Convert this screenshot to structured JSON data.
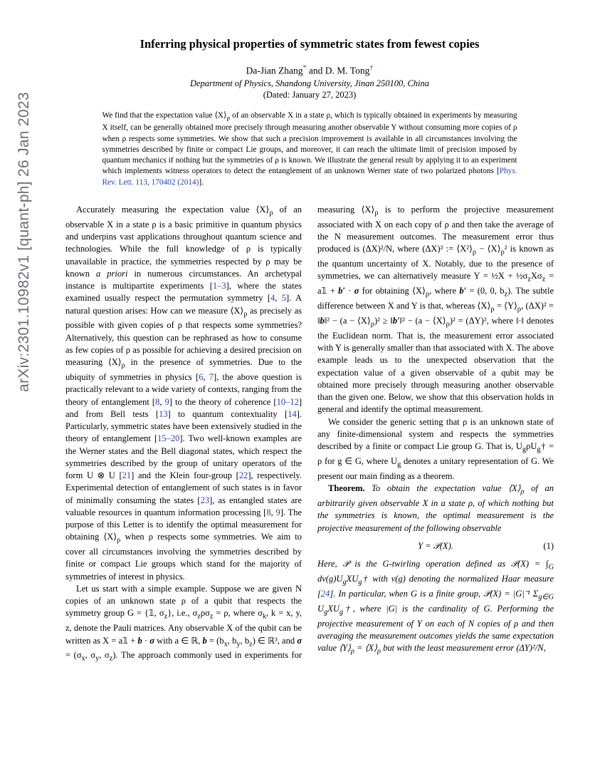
{
  "arxiv_stamp": "arXiv:2301.10982v1  [quant-ph]  26 Jan 2023",
  "title": "Inferring physical properties of symmetric states from fewest copies",
  "authors": "Da-Jian Zhang",
  "authors2": " and D. M. Tong",
  "affiliation": "Department of Physics, Shandong University, Jinan 250100, China",
  "date": "(Dated: January 27, 2023)",
  "abstract_1": "We find that the expectation value ⟨X⟩",
  "abstract_1b": " of an observable X in a state ρ, which is typically obtained in experiments by measuring X itself, can be generally obtained more precisely through measuring another observable Y without consuming more copies of ρ when ρ respects some symmetries. We show that such a precision improvement is available in all circumstances involving the symmetries described by finite or compact Lie groups, and moreover, it can reach the ultimate limit of precision imposed by quantum mechanics if nothing but the symmetries of ρ is known. We illustrate the general result by applying it to an experiment which implements witness operators to detect the entanglement of an unknown Werner state of two polarized photons [",
  "abstract_link": "Phys. Rev. Lett. 113, 170402 (2014)",
  "abstract_end": "].",
  "p1_a": "Accurately measuring the expectation value ⟨X⟩",
  "p1_b": " of an observable X in a state ρ is a basic primitive in quantum physics and underpins vast applications throughout quantum science and technologies. While the full knowledge of ρ is typically unavailable in practice, the symmetries respected by ρ may be known ",
  "p1_apriori": "a priori",
  "p1_c": " in numerous circumstances. An archetypal instance is multipartite experiments [",
  "r1": "1–3",
  "p1_d": "], where the states examined usually respect the permutation symmetry [",
  "r2": "4",
  "p1_e": ", ",
  "r3": "5",
  "p1_f": "]. A natural question arises: How can we measure ⟨X⟩",
  "p1_g": " as precisely as possible with given copies of ρ that respects some symmetries? Alternatively, this question can be rephrased as how to consume as few copies of ρ as possible for achieving a desired precision on measuring ⟨X⟩",
  "p1_h": " in the presence of symmetries. Due to the ubiquity of symmetries in physics [",
  "r4": "6",
  "p1_i": ", ",
  "r5": "7",
  "p1_j": "], the above question is practically relevant to a wide variety of contexts, ranging from the theory of entanglement [",
  "r6": "8",
  "p1_k": ", ",
  "r7": "9",
  "p1_l": "] to the theory of coherence [",
  "r8": "10–12",
  "p1_m": "] and from Bell tests [",
  "r9": "13",
  "p1_n": "] to quantum contextuality [",
  "r10": "14",
  "p1_o": "]. Particularly, symmetric states have been extensively studied in the theory of entanglement [",
  "r11": "15–20",
  "p1_p": "]. Two well-known examples are the Werner states and the Bell diagonal states, which respect the symmetries described by the group of unitary operators of the form U ⊗ U [",
  "r12": "21",
  "p1_q": "] and the Klein four-group [",
  "r13": "22",
  "p1_r": "], respectively. Experimental detection of entanglement of such states is in favor of minimally consuming the states [",
  "r14": "23",
  "p1_s": "], as entangled states are valuable resources in quantum information processing [",
  "r15": "8",
  "p1_t": ", ",
  "r16": "9",
  "p1_u": "]. The purpose of this Letter is to identify the optimal measurement for obtaining ⟨X⟩",
  "p1_v": " when ρ respects some symmetries. We aim to cover all circumstances involving the symmetries described by finite or compact Lie groups which stand for the majority of symmetries of interest in physics.",
  "p2_a": "Let us start with a simple example. Suppose we are given N copies of an unknown state ρ of a qubit that respects the symmetry group G = {𝟙, σ",
  "p2_b": "}, i.e., σ",
  "p2_c": "ρσ",
  "p2_d": " = ρ, where σ",
  "p2_e": ", k = x, y, z, denote the Pauli matrices. Any observable X of the qubit can be written as X = a𝟙 + ",
  "p2_bold_b": "b",
  "p2_f": " · ",
  "p2_bold_sigma": "σ",
  "p2_g": " with a ∈ ℝ, ",
  "p2_bold_b2": "b",
  "p2_h": " = (b",
  "p2_i": ", b",
  "p2_j": ", b",
  "p2_k": ") ∈ ℝ³, and ",
  "p2_bold_sigma2": "σ",
  "p2_l": " = (σ",
  "p2_m": ", σ",
  "p2_n": ", σ",
  "p2_o": "). The approach commonly used in experiments for measuring ⟨X⟩",
  "p2_p": " is to perform the projective measurement associated with X on each copy of ρ and then take the average of the N measurement outcomes. The measurement error thus produced is (ΔX)²/N, where (ΔX)² := ⟨X²⟩",
  "p2_q": " − ⟨X⟩",
  "p2_r": "² is known as the quantum uncertainty of X. Notably, due to the presence of symmetries, we can alternatively measure Y = ½X + ½σ",
  "p2_s": "Xσ",
  "p2_t": " = a𝟙 + ",
  "p2_bold_bp": "b′",
  "p2_u": " · ",
  "p2_bold_sigma3": "σ",
  "p2_v": " for obtaining ⟨X⟩",
  "p2_w": ", where ",
  "p2_bold_bp2": "b′",
  "p2_x": " = (0, 0, b",
  "p2_y": "). The subtle difference between X and Y is that, whereas ⟨X⟩",
  "p2_z": " = ⟨Y⟩",
  "p2_aa": ", (ΔX)² = ‖",
  "p2_bold_b3": "b",
  "p2_bb": "‖² − (a − ⟨X⟩",
  "p2_cc": ")² ≥ ‖",
  "p2_bold_bp3": "b′",
  "p2_dd": "‖² − (a − ⟨X⟩",
  "p2_ee": ")² = (ΔY)², where ‖·‖ denotes the Euclidean norm. That is, the measurement error associated with Y is generally smaller than that associated with X. The above example leads us to the unexpected observation that the expectation value of a given observable of a qubit may be obtained more precisely through measuring another observable than the given one. Below, we show that this observation holds in general and identify the optimal measurement.",
  "p3_a": "We consider the generic setting that ρ is an unknown state of any finite-dimensional system and respects the symmetries described by a finite or compact Lie group G. That is, U",
  "p3_b": "ρU",
  "p3_c": "† = ρ for g ∈ G, where U",
  "p3_d": " denotes a unitary representation of G. We present our main finding as a theorem.",
  "thm_label": "Theorem.",
  "thm_a": " To obtain the expectation value ⟨X⟩",
  "thm_b": " of an arbitrarily given observable X in a state ρ, of which nothing but the symmetries is known, the optimal measurement is the projective measurement of the following observable",
  "eq1": "Y = 𝒫(X).",
  "eq1_num": "(1)",
  "post_a": "Here, 𝒫 is the G-twirling operation defined as 𝒫(X) = ∫",
  "post_b": " dν(g)U",
  "post_c": "XU",
  "post_d": "† with ν(g) denoting the normalized Haar measure [",
  "r24": "24",
  "post_e": "]. In particular, when G is a finite group, 𝒫(X) = |G|⁻¹ Σ",
  "post_f": " U",
  "post_g": "XU",
  "post_h": "†, where |G| is the cardinality of G. Performing the projective measurement of Y on each of N copies of ρ and then averaging the measurement outcomes yields the same expectation value ⟨Y⟩",
  "post_i": " = ⟨X⟩",
  "post_j": " but with the least measurement error (ΔY)²/N,"
}
